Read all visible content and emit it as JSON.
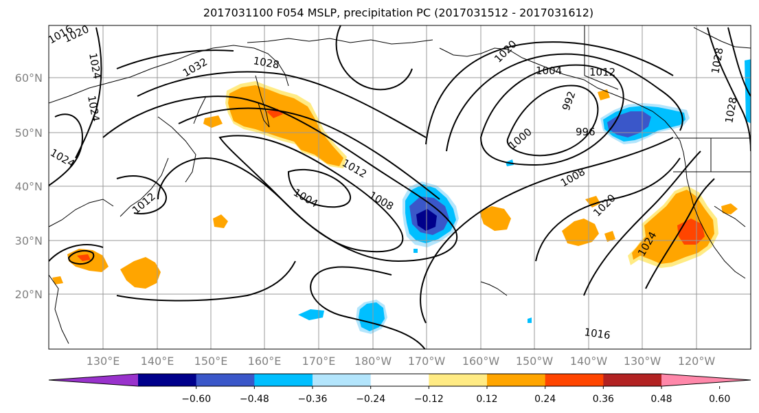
{
  "title": "2017031100 F054 MSLP, precipitation PC (2017031512 - 2017031612)",
  "lat_labels": [
    "60°N",
    "50°N",
    "40°N",
    "30°N",
    "20°N"
  ],
  "lon_labels": [
    "130°E",
    "140°E",
    "150°E",
    "160°E",
    "170°E",
    "180°W",
    "170°W",
    "160°W",
    "150°W",
    "140°W",
    "130°W",
    "120°W"
  ],
  "contour_labels": [
    "1016",
    "1020",
    "1024",
    "1024",
    "1024",
    "1032",
    "1028",
    "1020",
    "1004",
    "1012",
    "992",
    "996",
    "1000",
    "1012",
    "1004",
    "1008",
    "1008",
    "1012",
    "1020",
    "1024",
    "1028",
    "1028",
    "1016"
  ],
  "colorbar": {
    "ticks": [
      "−0.60",
      "−0.48",
      "−0.36",
      "−0.24",
      "−0.12",
      "0.12",
      "0.24",
      "0.36",
      "0.48",
      "0.60"
    ],
    "colors": [
      "#9932cc",
      "#00008b",
      "#3a57c9",
      "#00bfff",
      "#b3e5fc",
      "#ffffff",
      "#ffeb84",
      "#ffa500",
      "#ff4500",
      "#b22222",
      "#ff88aa"
    ]
  },
  "colors": {
    "grid": "#999999",
    "contour": "#000000",
    "coast": "#000000"
  }
}
